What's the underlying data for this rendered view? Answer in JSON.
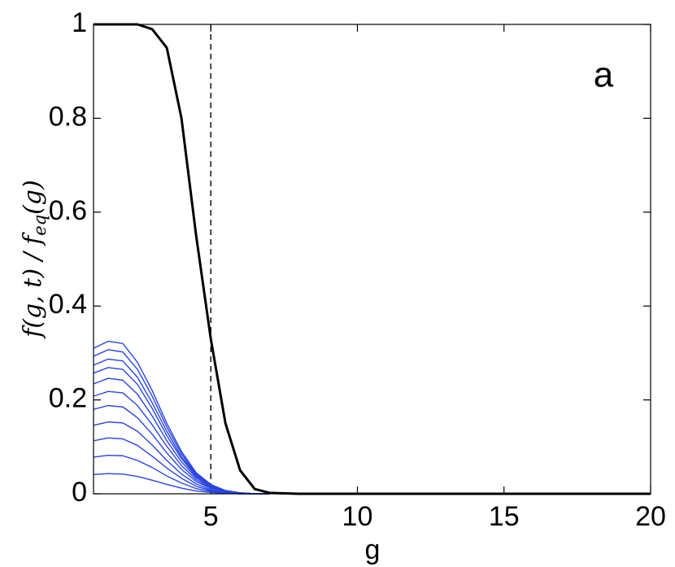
{
  "chart_data": {
    "type": "line",
    "annotation": "a",
    "xlabel": "g",
    "ylabel": [
      "f(g, t) / f",
      "eq",
      "(g)"
    ],
    "x": [
      1,
      1.5,
      2,
      2.5,
      3,
      3.5,
      4,
      4.5,
      5,
      5.5,
      6,
      6.5,
      7,
      8,
      10,
      20
    ],
    "series": [
      {
        "color": "#2945e0",
        "width": 1.4,
        "values": [
          0.041,
          0.043,
          0.042,
          0.037,
          0.029,
          0.02,
          0.012,
          0.006,
          0.003,
          0.001,
          0,
          0,
          0,
          null,
          null,
          null
        ]
      },
      {
        "color": "#2945e0",
        "width": 1.4,
        "values": [
          0.078,
          0.082,
          0.081,
          0.071,
          0.056,
          0.038,
          0.023,
          0.011,
          0.005,
          0.002,
          0,
          0,
          0,
          null,
          null,
          null
        ]
      },
      {
        "color": "#2945e0",
        "width": 1.4,
        "values": [
          0.113,
          0.119,
          0.117,
          0.103,
          0.08,
          0.055,
          0.033,
          0.016,
          0.007,
          0.003,
          0.001,
          0,
          0,
          null,
          null,
          null
        ]
      },
      {
        "color": "#2945e0",
        "width": 1.4,
        "values": [
          0.146,
          0.153,
          0.151,
          0.133,
          0.104,
          0.071,
          0.042,
          0.021,
          0.009,
          0.003,
          0.001,
          0,
          0,
          null,
          null,
          null
        ]
      },
      {
        "color": "#2945e0",
        "width": 1.4,
        "values": [
          0.18,
          0.188,
          0.185,
          0.162,
          0.127,
          0.087,
          0.052,
          0.026,
          0.012,
          0.004,
          0.001,
          0,
          0,
          null,
          null,
          null
        ]
      },
      {
        "color": "#2945e0",
        "width": 1.4,
        "values": [
          0.208,
          0.218,
          0.215,
          0.188,
          0.147,
          0.101,
          0.06,
          0.03,
          0.013,
          0.005,
          0.001,
          0,
          0,
          null,
          null,
          null
        ]
      },
      {
        "color": "#2945e0",
        "width": 1.4,
        "values": [
          0.234,
          0.246,
          0.242,
          0.212,
          0.166,
          0.113,
          0.068,
          0.034,
          0.015,
          0.005,
          0.001,
          0,
          0,
          null,
          null,
          null
        ]
      },
      {
        "color": "#2945e0",
        "width": 1.4,
        "values": [
          0.257,
          0.269,
          0.265,
          0.233,
          0.182,
          0.124,
          0.075,
          0.037,
          0.017,
          0.006,
          0.002,
          0,
          0,
          null,
          null,
          null
        ]
      },
      {
        "color": "#2945e0",
        "width": 1.4,
        "values": [
          0.274,
          0.287,
          0.283,
          0.248,
          0.194,
          0.133,
          0.079,
          0.04,
          0.018,
          0.006,
          0.002,
          0,
          0,
          null,
          null,
          null
        ]
      },
      {
        "color": "#2945e0",
        "width": 1.4,
        "values": [
          0.293,
          0.307,
          0.302,
          0.265,
          0.208,
          0.142,
          0.085,
          0.042,
          0.019,
          0.007,
          0.002,
          0,
          0,
          null,
          null,
          null
        ]
      },
      {
        "color": "#2945e0",
        "width": 1.4,
        "values": [
          0.31,
          0.325,
          0.32,
          0.28,
          0.22,
          0.15,
          0.09,
          0.045,
          0.02,
          0.007,
          0.002,
          0,
          0,
          null,
          null,
          null
        ]
      },
      {
        "color": "#000000",
        "width": 3,
        "values": [
          1,
          1,
          1,
          1,
          0.99,
          0.95,
          0.8,
          0.55,
          0.33,
          0.15,
          0.05,
          0.01,
          0.002,
          0,
          0,
          0
        ]
      }
    ],
    "vline": {
      "x": 5,
      "dashed": true,
      "color": "#000000"
    },
    "xlim": [
      1,
      20
    ],
    "ylim": [
      0,
      1
    ],
    "xticks": [
      5,
      10,
      15,
      20
    ],
    "yticks": [
      0,
      0.2,
      0.4,
      0.6,
      0.8,
      1
    ],
    "grid": false
  }
}
